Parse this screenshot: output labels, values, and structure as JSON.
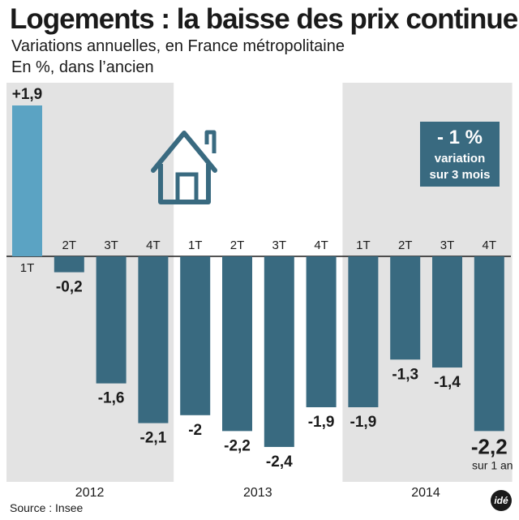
{
  "header": {
    "title": "Logements : la baisse des prix continue",
    "subtitle1": "Variations annuelles, en France métropolitaine",
    "subtitle2": "En %, dans l’ancien"
  },
  "chart_data": {
    "type": "bar",
    "title": "Logements : la baisse des prix continue",
    "subtitle": "Variations annuelles, en France métropolitaine",
    "unit_note": "En %, dans l’ancien",
    "years": [
      "2012",
      "2013",
      "2014"
    ],
    "categories": [
      "1T",
      "2T",
      "3T",
      "4T",
      "1T",
      "2T",
      "3T",
      "4T",
      "1T",
      "2T",
      "3T",
      "4T"
    ],
    "values": [
      1.9,
      -0.2,
      -1.6,
      -2.1,
      -2.0,
      -2.2,
      -2.4,
      -1.9,
      -1.9,
      -1.3,
      -1.4,
      -2.2
    ],
    "value_labels": [
      "+1,9",
      "-0,2",
      "-1,6",
      "-2,1",
      "-2",
      "-2,2",
      "-2,4",
      "-1,9",
      "-1,9",
      "-1,3",
      "-1,4",
      "-2,2"
    ],
    "last_value_note": "sur 1 an",
    "ylim": [
      -2.4,
      1.9
    ],
    "colors": {
      "positive": "#5ba3c3",
      "negative": "#396a80",
      "year_shade": "#e3e3e3"
    },
    "shaded_years": [
      "2012",
      "2014"
    ],
    "callout": {
      "value": "- 1 %",
      "line1": "variation",
      "line2": "sur 3 mois"
    },
    "icon": "house-icon"
  },
  "footer": {
    "source": "Source : Insee",
    "logo": "idé"
  }
}
